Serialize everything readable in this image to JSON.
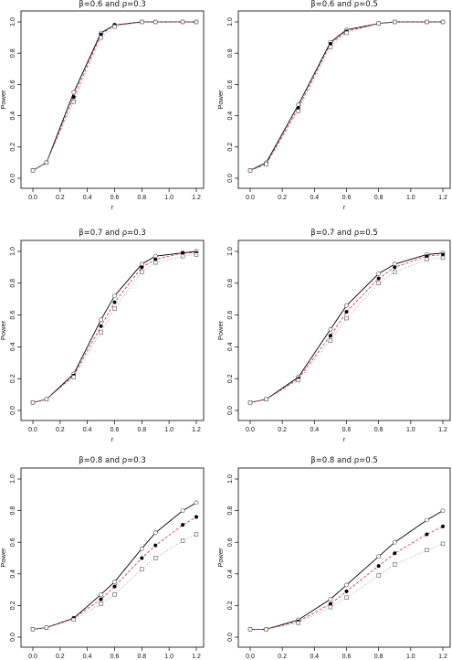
{
  "figure": {
    "style": {
      "series_colors": [
        "#000000",
        "#d6243a",
        "#7d93c8"
      ],
      "line_dashes": [
        "",
        "3,2",
        "1,2"
      ],
      "marker_shapes": [
        "circle-open",
        "circle-filled",
        "square-open"
      ]
    }
  },
  "chart_data": [
    {
      "type": "line",
      "title": "β=0.6 and ρ=0.3",
      "xlabel": "r",
      "ylabel": "Power",
      "xlim": [
        0.0,
        1.2
      ],
      "ylim": [
        0.0,
        1.0
      ],
      "xticks": [
        "0.0",
        "0.2",
        "0.4",
        "0.6",
        "0.8",
        "1.0",
        "1.2"
      ],
      "yticks": [
        "0.0",
        "0.2",
        "0.4",
        "0.6",
        "0.8",
        "1.0"
      ],
      "grid": false,
      "x": [
        0.0,
        0.1,
        0.3,
        0.5,
        0.6,
        0.8,
        0.9,
        1.1,
        1.2
      ],
      "series": [
        {
          "values": [
            0.05,
            0.1,
            0.55,
            0.93,
            0.98,
            1.0,
            1.0,
            1.0,
            1.0
          ]
        },
        {
          "values": [
            0.05,
            0.1,
            0.52,
            0.92,
            0.98,
            1.0,
            1.0,
            1.0,
            1.0
          ]
        },
        {
          "values": [
            0.05,
            0.1,
            0.49,
            0.9,
            0.97,
            1.0,
            1.0,
            1.0,
            1.0
          ]
        }
      ]
    },
    {
      "type": "line",
      "title": "β=0.6 and ρ=0.5",
      "xlabel": "r",
      "ylabel": "Power",
      "xlim": [
        0.0,
        1.2
      ],
      "ylim": [
        0.0,
        1.0
      ],
      "xticks": [
        "0.0",
        "0.2",
        "0.4",
        "0.6",
        "0.8",
        "1.0",
        "1.2"
      ],
      "yticks": [
        "0.0",
        "0.2",
        "0.4",
        "0.6",
        "0.8",
        "1.0"
      ],
      "grid": false,
      "x": [
        0.0,
        0.1,
        0.3,
        0.5,
        0.6,
        0.8,
        0.9,
        1.1,
        1.2
      ],
      "series": [
        {
          "values": [
            0.05,
            0.1,
            0.47,
            0.87,
            0.95,
            0.99,
            1.0,
            1.0,
            1.0
          ]
        },
        {
          "values": [
            0.05,
            0.09,
            0.45,
            0.86,
            0.94,
            0.99,
            1.0,
            1.0,
            1.0
          ]
        },
        {
          "values": [
            0.05,
            0.09,
            0.43,
            0.84,
            0.93,
            0.99,
            1.0,
            1.0,
            1.0
          ]
        }
      ]
    },
    {
      "type": "line",
      "title": "β=0.7 and ρ=0.3",
      "xlabel": "r",
      "ylabel": "Power",
      "xlim": [
        0.0,
        1.2
      ],
      "ylim": [
        0.0,
        1.0
      ],
      "xticks": [
        "0.0",
        "0.2",
        "0.4",
        "0.6",
        "0.8",
        "1.0",
        "1.2"
      ],
      "yticks": [
        "0.0",
        "0.2",
        "0.4",
        "0.6",
        "0.8",
        "1.0"
      ],
      "grid": false,
      "x": [
        0.0,
        0.1,
        0.3,
        0.5,
        0.6,
        0.8,
        0.9,
        1.1,
        1.2
      ],
      "series": [
        {
          "values": [
            0.05,
            0.07,
            0.23,
            0.57,
            0.72,
            0.92,
            0.97,
            0.99,
            1.0
          ]
        },
        {
          "values": [
            0.05,
            0.07,
            0.22,
            0.53,
            0.68,
            0.9,
            0.95,
            0.99,
            0.99
          ]
        },
        {
          "values": [
            0.05,
            0.07,
            0.21,
            0.49,
            0.64,
            0.87,
            0.93,
            0.97,
            0.98
          ]
        }
      ]
    },
    {
      "type": "line",
      "title": "β=0.7 and ρ=0.5",
      "xlabel": "r",
      "ylabel": "Power",
      "xlim": [
        0.0,
        1.2
      ],
      "ylim": [
        0.0,
        1.0
      ],
      "xticks": [
        "0.0",
        "0.2",
        "0.4",
        "0.6",
        "0.8",
        "1.0",
        "1.2"
      ],
      "yticks": [
        "0.0",
        "0.2",
        "0.4",
        "0.6",
        "0.8",
        "1.0"
      ],
      "grid": false,
      "x": [
        0.0,
        0.1,
        0.3,
        0.5,
        0.6,
        0.8,
        0.9,
        1.1,
        1.2
      ],
      "series": [
        {
          "values": [
            0.05,
            0.07,
            0.21,
            0.51,
            0.66,
            0.86,
            0.92,
            0.98,
            0.99
          ]
        },
        {
          "values": [
            0.05,
            0.07,
            0.2,
            0.47,
            0.62,
            0.83,
            0.9,
            0.97,
            0.98
          ]
        },
        {
          "values": [
            0.05,
            0.07,
            0.19,
            0.44,
            0.58,
            0.8,
            0.87,
            0.95,
            0.96
          ]
        }
      ]
    },
    {
      "type": "line",
      "title": "β=0.8 and ρ=0.3",
      "xlabel": "r",
      "ylabel": "Power",
      "xlim": [
        0.0,
        1.2
      ],
      "ylim": [
        0.0,
        1.0
      ],
      "xticks": [
        "0.0",
        "0.2",
        "0.4",
        "0.6",
        "0.8",
        "1.0",
        "1.2"
      ],
      "yticks": [
        "0.0",
        "0.2",
        "0.4",
        "0.6",
        "0.8",
        "1.0"
      ],
      "grid": false,
      "x": [
        0.0,
        0.1,
        0.3,
        0.5,
        0.6,
        0.8,
        0.9,
        1.1,
        1.2
      ],
      "series": [
        {
          "values": [
            0.05,
            0.06,
            0.12,
            0.27,
            0.35,
            0.56,
            0.66,
            0.8,
            0.85
          ]
        },
        {
          "values": [
            0.05,
            0.06,
            0.12,
            0.24,
            0.32,
            0.5,
            0.58,
            0.71,
            0.76
          ]
        },
        {
          "values": [
            0.05,
            0.06,
            0.11,
            0.21,
            0.27,
            0.43,
            0.5,
            0.61,
            0.65
          ]
        }
      ]
    },
    {
      "type": "line",
      "title": "β=0.8 and ρ=0.5",
      "xlabel": "r",
      "ylabel": "Power",
      "xlim": [
        0.0,
        1.2
      ],
      "ylim": [
        0.0,
        1.0
      ],
      "xticks": [
        "0.0",
        "0.2",
        "0.4",
        "0.6",
        "0.8",
        "1.0",
        "1.2"
      ],
      "yticks": [
        "0.0",
        "0.2",
        "0.4",
        "0.6",
        "0.8",
        "1.0"
      ],
      "grid": false,
      "x": [
        0.0,
        0.1,
        0.3,
        0.5,
        0.6,
        0.8,
        0.9,
        1.1,
        1.2
      ],
      "series": [
        {
          "values": [
            0.05,
            0.05,
            0.11,
            0.24,
            0.33,
            0.51,
            0.6,
            0.74,
            0.8
          ]
        },
        {
          "values": [
            0.05,
            0.05,
            0.1,
            0.21,
            0.29,
            0.45,
            0.53,
            0.65,
            0.7
          ]
        },
        {
          "values": [
            0.05,
            0.05,
            0.09,
            0.19,
            0.25,
            0.39,
            0.46,
            0.55,
            0.59
          ]
        }
      ]
    }
  ]
}
